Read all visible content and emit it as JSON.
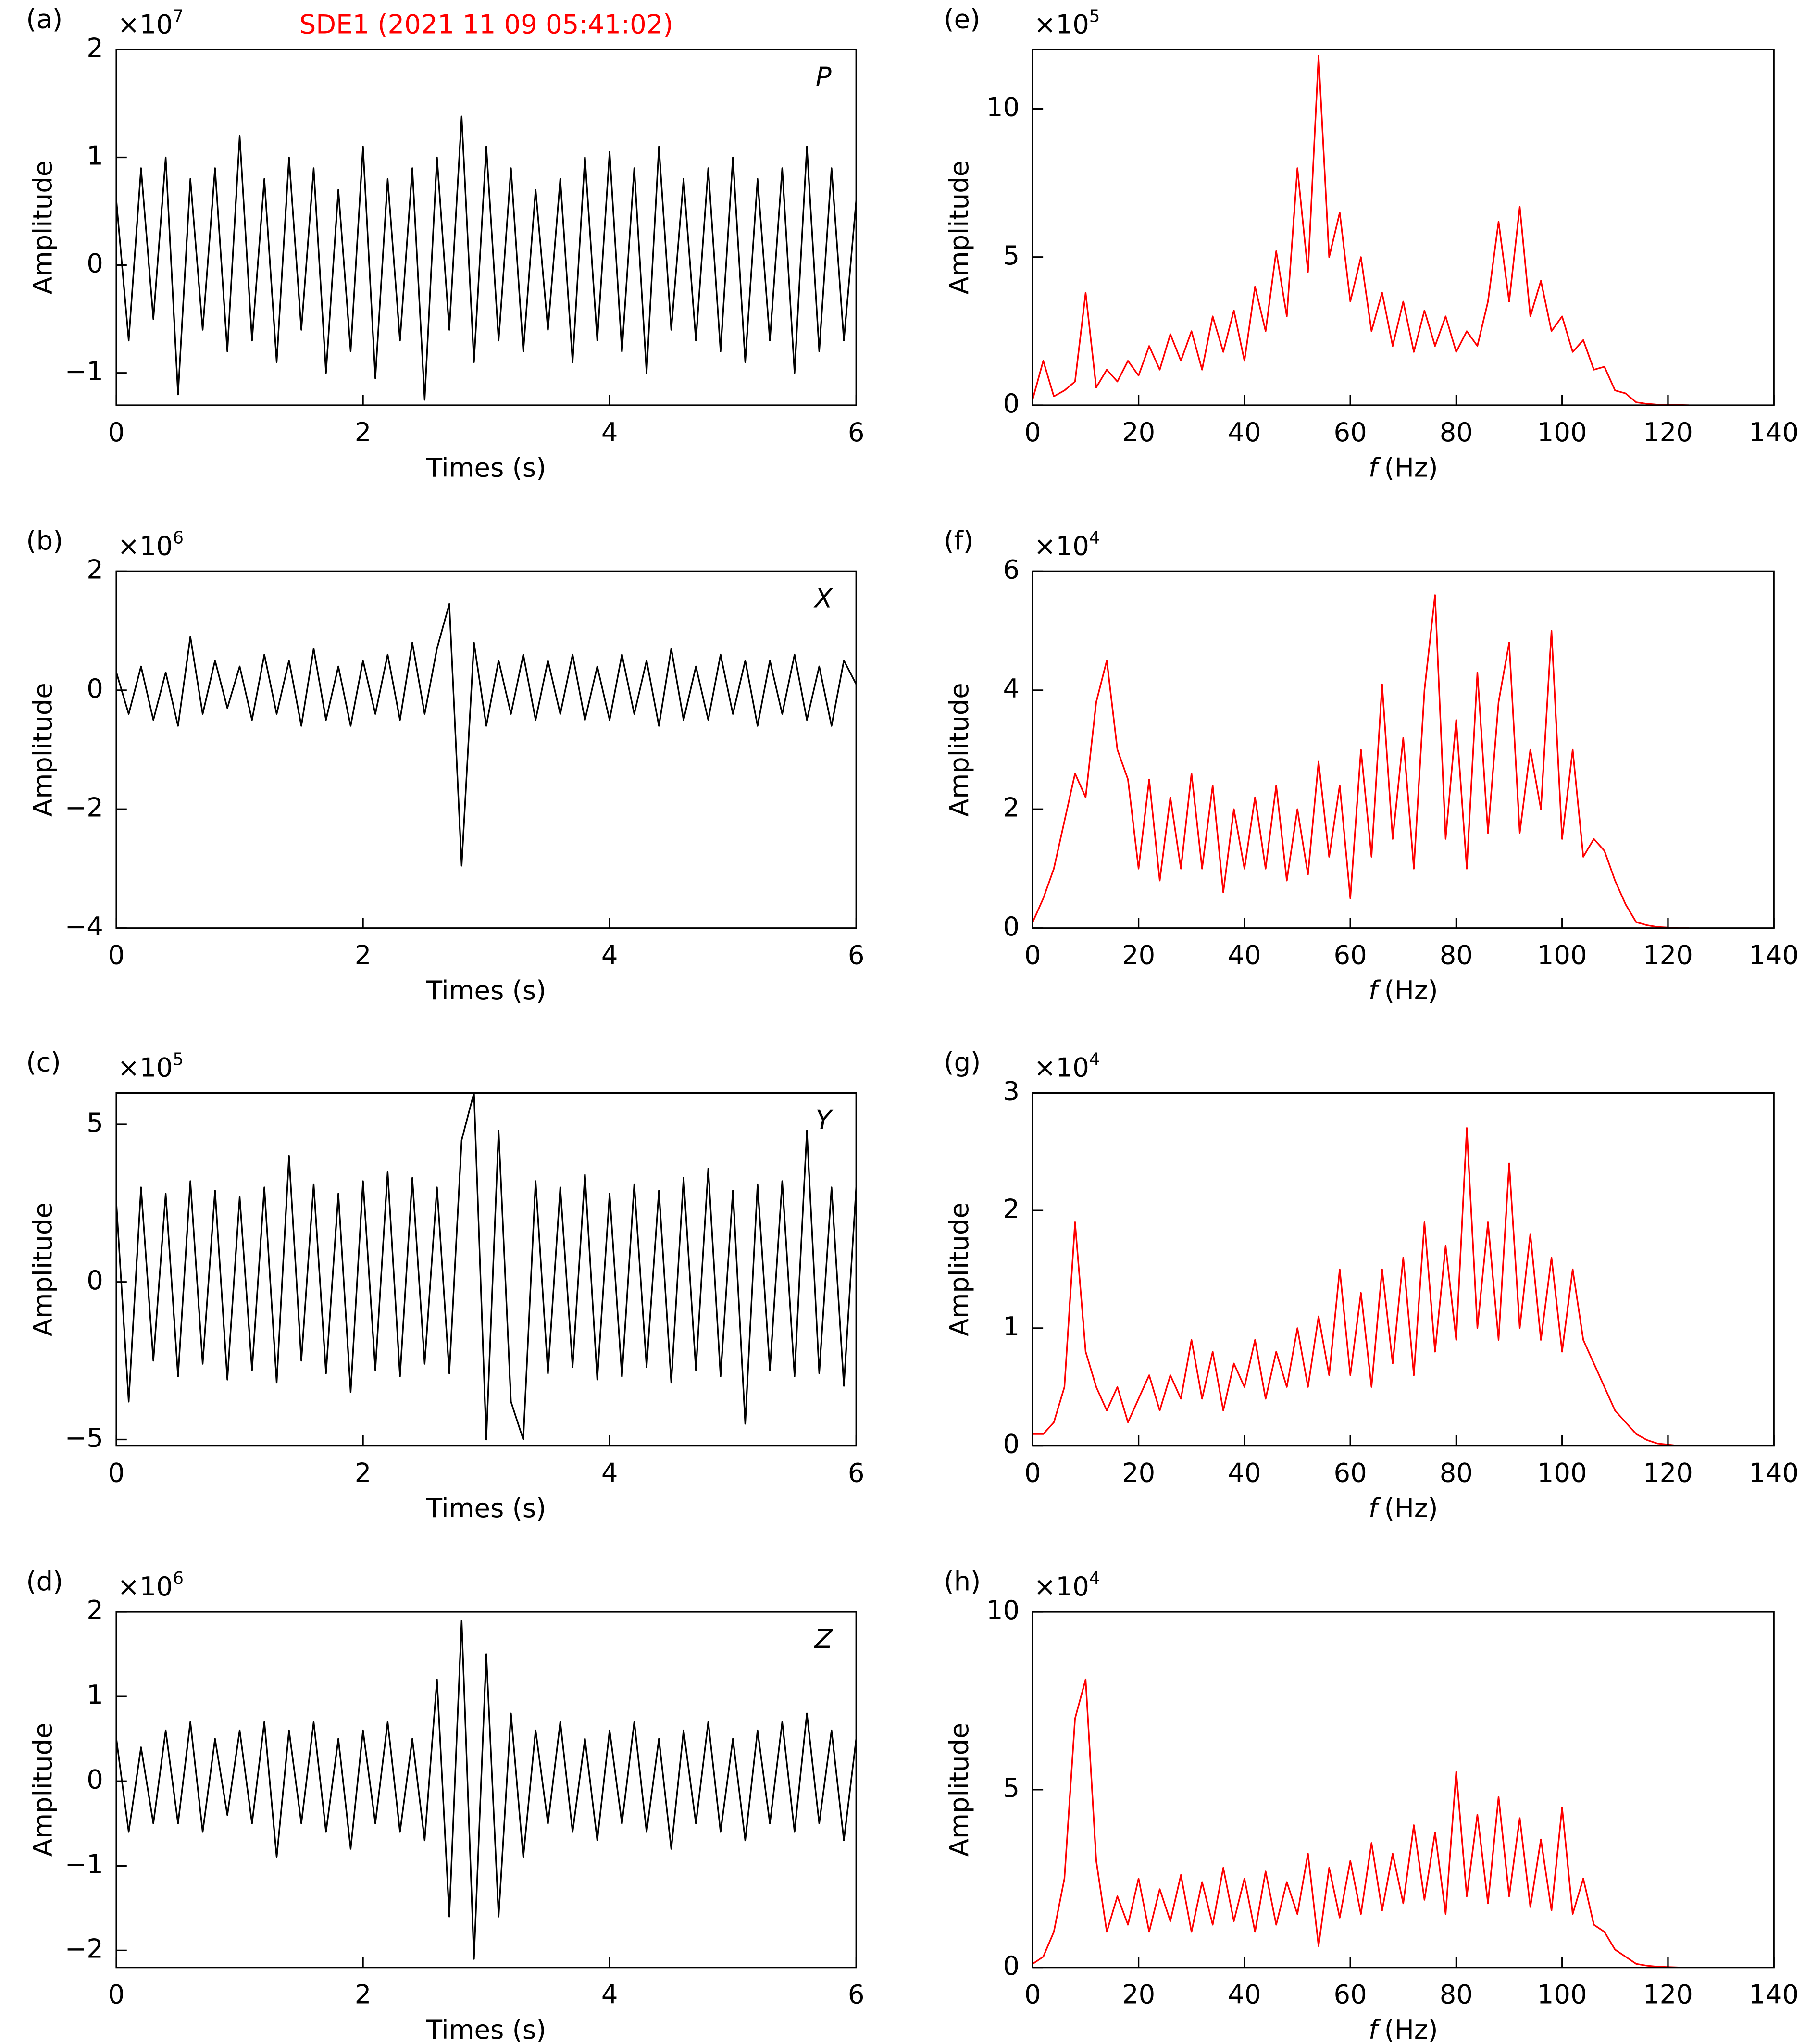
{
  "chart_data": [
    {
      "type": "line",
      "panel": "(a)",
      "title": "SDE1 (2021 11 09 05:41:02)",
      "title_color": "#ff0000",
      "multiplier": "×10",
      "exponent": "7",
      "annotation": "P",
      "xlabel": "Times (s)",
      "ylabel": "Amplitude",
      "xlim": [
        0,
        6
      ],
      "xticks": [
        0,
        2,
        4,
        6
      ],
      "ylim": [
        -1.3,
        2
      ],
      "yticks": [
        {
          "value": -1,
          "label": "−1"
        },
        0,
        1,
        2
      ],
      "x": [
        0,
        0.1,
        0.2,
        0.3,
        0.4,
        0.5,
        0.6,
        0.7,
        0.8,
        0.9,
        1,
        1.1,
        1.2,
        1.3,
        1.4,
        1.5,
        1.6,
        1.7,
        1.8,
        1.9,
        2,
        2.1,
        2.2,
        2.3,
        2.4,
        2.5,
        2.6,
        2.7,
        2.8,
        2.9,
        3,
        3.1,
        3.2,
        3.3,
        3.4,
        3.5,
        3.6,
        3.7,
        3.8,
        3.9,
        4,
        4.1,
        4.2,
        4.3,
        4.4,
        4.5,
        4.6,
        4.7,
        4.8,
        4.9,
        5,
        5.1,
        5.2,
        5.3,
        5.4,
        5.5,
        5.6,
        5.7,
        5.8,
        5.9,
        6
      ],
      "series": [
        {
          "color": "#000000",
          "values": [
            0.6,
            -0.7,
            0.9,
            -0.5,
            1.0,
            -1.2,
            0.8,
            -0.6,
            0.9,
            -0.8,
            1.2,
            -0.7,
            0.8,
            -0.9,
            1.0,
            -0.6,
            0.9,
            -1.0,
            0.7,
            -0.8,
            1.1,
            -1.05,
            0.8,
            -0.7,
            0.9,
            -1.25,
            1.0,
            -0.6,
            1.38,
            -0.9,
            1.1,
            -0.7,
            0.9,
            -0.8,
            0.7,
            -0.6,
            0.8,
            -0.9,
            1.0,
            -0.7,
            1.05,
            -0.8,
            0.9,
            -1.0,
            1.1,
            -0.6,
            0.8,
            -0.7,
            0.9,
            -0.8,
            1.0,
            -0.9,
            0.8,
            -0.7,
            0.9,
            -1.0,
            1.1,
            -0.8,
            0.9,
            -0.7,
            0.6
          ]
        }
      ]
    },
    {
      "type": "line",
      "panel": "(b)",
      "multiplier": "×10",
      "exponent": "6",
      "annotation": "X",
      "xlabel": "Times (s)",
      "ylabel": "Amplitude",
      "xlim": [
        0,
        6
      ],
      "xticks": [
        0,
        2,
        4,
        6
      ],
      "ylim": [
        -4,
        2
      ],
      "yticks": [
        {
          "value": -4,
          "label": "−4"
        },
        {
          "value": -2,
          "label": "−2"
        },
        0,
        2
      ],
      "x": [
        0,
        0.1,
        0.2,
        0.3,
        0.4,
        0.5,
        0.6,
        0.7,
        0.8,
        0.9,
        1,
        1.1,
        1.2,
        1.3,
        1.4,
        1.5,
        1.6,
        1.7,
        1.8,
        1.9,
        2,
        2.1,
        2.2,
        2.3,
        2.4,
        2.5,
        2.6,
        2.7,
        2.8,
        2.9,
        3,
        3.1,
        3.2,
        3.3,
        3.4,
        3.5,
        3.6,
        3.7,
        3.8,
        3.9,
        4,
        4.1,
        4.2,
        4.3,
        4.4,
        4.5,
        4.6,
        4.7,
        4.8,
        4.9,
        5,
        5.1,
        5.2,
        5.3,
        5.4,
        5.5,
        5.6,
        5.7,
        5.8,
        5.9,
        6
      ],
      "series": [
        {
          "color": "#000000",
          "values": [
            0.3,
            -0.4,
            0.4,
            -0.5,
            0.3,
            -0.6,
            0.9,
            -0.4,
            0.5,
            -0.3,
            0.4,
            -0.5,
            0.6,
            -0.4,
            0.5,
            -0.6,
            0.7,
            -0.5,
            0.4,
            -0.6,
            0.5,
            -0.4,
            0.6,
            -0.5,
            0.8,
            -0.4,
            0.7,
            1.45,
            -2.95,
            0.8,
            -0.6,
            0.5,
            -0.4,
            0.6,
            -0.5,
            0.5,
            -0.4,
            0.6,
            -0.5,
            0.4,
            -0.5,
            0.6,
            -0.4,
            0.5,
            -0.6,
            0.7,
            -0.5,
            0.4,
            -0.5,
            0.6,
            -0.4,
            0.5,
            -0.6,
            0.5,
            -0.4,
            0.6,
            -0.5,
            0.4,
            -0.6,
            0.5,
            0.1
          ]
        }
      ]
    },
    {
      "type": "line",
      "panel": "(c)",
      "multiplier": "×10",
      "exponent": "5",
      "annotation": "Y",
      "xlabel": "Times (s)",
      "ylabel": "Amplitude",
      "xlim": [
        0,
        6
      ],
      "xticks": [
        0,
        2,
        4,
        6
      ],
      "ylim": [
        -5.2,
        6
      ],
      "yticks": [
        {
          "value": -5,
          "label": "−5"
        },
        0,
        5
      ],
      "x": [
        0,
        0.1,
        0.2,
        0.3,
        0.4,
        0.5,
        0.6,
        0.7,
        0.8,
        0.9,
        1,
        1.1,
        1.2,
        1.3,
        1.4,
        1.5,
        1.6,
        1.7,
        1.8,
        1.9,
        2,
        2.1,
        2.2,
        2.3,
        2.4,
        2.5,
        2.6,
        2.7,
        2.8,
        2.9,
        3,
        3.1,
        3.2,
        3.3,
        3.4,
        3.5,
        3.6,
        3.7,
        3.8,
        3.9,
        4,
        4.1,
        4.2,
        4.3,
        4.4,
        4.5,
        4.6,
        4.7,
        4.8,
        4.9,
        5,
        5.1,
        5.2,
        5.3,
        5.4,
        5.5,
        5.6,
        5.7,
        5.8,
        5.9,
        6
      ],
      "series": [
        {
          "color": "#000000",
          "values": [
            2.5,
            -3.8,
            3.0,
            -2.5,
            2.8,
            -3.0,
            3.2,
            -2.6,
            2.9,
            -3.1,
            2.7,
            -2.8,
            3.0,
            -3.2,
            4.0,
            -2.5,
            3.1,
            -2.9,
            2.8,
            -3.5,
            3.2,
            -2.8,
            3.5,
            -3.0,
            3.3,
            -2.6,
            3.0,
            -2.9,
            4.5,
            6.0,
            -5.0,
            4.8,
            -3.8,
            -5.0,
            3.2,
            -2.9,
            3.0,
            -2.7,
            3.4,
            -3.1,
            2.8,
            -3.0,
            3.1,
            -2.7,
            2.9,
            -3.2,
            3.3,
            -2.8,
            3.6,
            -3.0,
            2.9,
            -4.5,
            3.1,
            -2.8,
            3.2,
            -3.0,
            4.8,
            -2.9,
            3.0,
            -3.3,
            3.0
          ]
        }
      ]
    },
    {
      "type": "line",
      "panel": "(d)",
      "multiplier": "×10",
      "exponent": "6",
      "annotation": "Z",
      "xlabel": "Times (s)",
      "ylabel": "Amplitude",
      "xlim": [
        0,
        6
      ],
      "xticks": [
        0,
        2,
        4,
        6
      ],
      "ylim": [
        -2.2,
        2
      ],
      "yticks": [
        {
          "value": -2,
          "label": "−2"
        },
        {
          "value": -1,
          "label": "−1"
        },
        0,
        1,
        2
      ],
      "x": [
        0,
        0.1,
        0.2,
        0.3,
        0.4,
        0.5,
        0.6,
        0.7,
        0.8,
        0.9,
        1,
        1.1,
        1.2,
        1.3,
        1.4,
        1.5,
        1.6,
        1.7,
        1.8,
        1.9,
        2,
        2.1,
        2.2,
        2.3,
        2.4,
        2.5,
        2.6,
        2.7,
        2.8,
        2.9,
        3,
        3.1,
        3.2,
        3.3,
        3.4,
        3.5,
        3.6,
        3.7,
        3.8,
        3.9,
        4,
        4.1,
        4.2,
        4.3,
        4.4,
        4.5,
        4.6,
        4.7,
        4.8,
        4.9,
        5,
        5.1,
        5.2,
        5.3,
        5.4,
        5.5,
        5.6,
        5.7,
        5.8,
        5.9,
        6
      ],
      "series": [
        {
          "color": "#000000",
          "values": [
            0.5,
            -0.6,
            0.4,
            -0.5,
            0.6,
            -0.5,
            0.7,
            -0.6,
            0.5,
            -0.4,
            0.6,
            -0.5,
            0.7,
            -0.9,
            0.6,
            -0.5,
            0.7,
            -0.6,
            0.5,
            -0.8,
            0.6,
            -0.5,
            0.7,
            -0.6,
            0.5,
            -0.7,
            1.2,
            -1.6,
            1.9,
            -2.1,
            1.5,
            -1.6,
            0.8,
            -0.9,
            0.6,
            -0.5,
            0.7,
            -0.6,
            0.5,
            -0.7,
            0.6,
            -0.5,
            0.7,
            -0.6,
            0.5,
            -0.8,
            0.6,
            -0.5,
            0.7,
            -0.6,
            0.5,
            -0.7,
            0.6,
            -0.5,
            0.7,
            -0.6,
            0.8,
            -0.5,
            0.6,
            -0.7,
            0.5
          ]
        }
      ]
    },
    {
      "type": "line",
      "panel": "(e)",
      "multiplier": "×10",
      "exponent": "5",
      "xlabel": {
        "var": "f",
        "unit": "(Hz)"
      },
      "ylabel": "Amplitude",
      "xlim": [
        0,
        140
      ],
      "xticks": [
        0,
        20,
        40,
        60,
        80,
        100,
        120,
        140
      ],
      "ylim": [
        0,
        12
      ],
      "yticks": [
        0,
        5,
        10
      ],
      "x": [
        0,
        2,
        4,
        6,
        8,
        10,
        12,
        14,
        16,
        18,
        20,
        22,
        24,
        26,
        28,
        30,
        32,
        34,
        36,
        38,
        40,
        42,
        44,
        46,
        48,
        50,
        52,
        54,
        56,
        58,
        60,
        62,
        64,
        66,
        68,
        70,
        72,
        74,
        76,
        78,
        80,
        82,
        84,
        86,
        88,
        90,
        92,
        94,
        96,
        98,
        100,
        102,
        104,
        106,
        108,
        110,
        112,
        114,
        116,
        118,
        120,
        122,
        124
      ],
      "series": [
        {
          "color": "#ff0000",
          "values": [
            0.2,
            1.5,
            0.3,
            0.5,
            0.8,
            3.8,
            0.6,
            1.2,
            0.8,
            1.5,
            1.0,
            2.0,
            1.2,
            2.4,
            1.5,
            2.5,
            1.2,
            3.0,
            1.8,
            3.2,
            1.5,
            4.0,
            2.5,
            5.2,
            3.0,
            8.0,
            4.5,
            11.8,
            5.0,
            6.5,
            3.5,
            5.0,
            2.5,
            3.8,
            2.0,
            3.5,
            1.8,
            3.2,
            2.0,
            3.0,
            1.8,
            2.5,
            2.0,
            3.5,
            6.2,
            3.5,
            6.7,
            3.0,
            4.2,
            2.5,
            3.0,
            1.8,
            2.2,
            1.2,
            1.3,
            0.5,
            0.4,
            0.1,
            0.05,
            0.02,
            0.01,
            0.01,
            0
          ]
        }
      ]
    },
    {
      "type": "line",
      "panel": "(f)",
      "multiplier": "×10",
      "exponent": "4",
      "xlabel": {
        "var": "f",
        "unit": "(Hz)"
      },
      "ylabel": "Amplitude",
      "xlim": [
        0,
        140
      ],
      "xticks": [
        0,
        20,
        40,
        60,
        80,
        100,
        120,
        140
      ],
      "ylim": [
        0,
        6
      ],
      "yticks": [
        0,
        2,
        4,
        6
      ],
      "x": [
        0,
        2,
        4,
        6,
        8,
        10,
        12,
        14,
        16,
        18,
        20,
        22,
        24,
        26,
        28,
        30,
        32,
        34,
        36,
        38,
        40,
        42,
        44,
        46,
        48,
        50,
        52,
        54,
        56,
        58,
        60,
        62,
        64,
        66,
        68,
        70,
        72,
        74,
        76,
        78,
        80,
        82,
        84,
        86,
        88,
        90,
        92,
        94,
        96,
        98,
        100,
        102,
        104,
        106,
        108,
        110,
        112,
        114,
        116,
        118,
        120,
        122,
        124
      ],
      "series": [
        {
          "color": "#ff0000",
          "values": [
            0.1,
            0.5,
            1.0,
            1.8,
            2.6,
            2.2,
            3.8,
            4.5,
            3.0,
            2.5,
            1.0,
            2.5,
            0.8,
            2.2,
            1.0,
            2.6,
            1.0,
            2.4,
            0.6,
            2.0,
            1.0,
            2.2,
            1.0,
            2.4,
            0.8,
            2.0,
            0.9,
            2.8,
            1.2,
            2.4,
            0.5,
            3.0,
            1.2,
            4.1,
            1.5,
            3.2,
            1.0,
            4.0,
            5.6,
            1.5,
            3.5,
            1.0,
            4.3,
            1.6,
            3.8,
            4.8,
            1.6,
            3.0,
            2.0,
            5.0,
            1.5,
            3.0,
            1.2,
            1.5,
            1.3,
            0.8,
            0.4,
            0.1,
            0.05,
            0.02,
            0.01,
            0,
            0
          ]
        }
      ]
    },
    {
      "type": "line",
      "panel": "(g)",
      "multiplier": "×10",
      "exponent": "4",
      "xlabel": {
        "var": "f",
        "unit": "(Hz)"
      },
      "ylabel": "Amplitude",
      "xlim": [
        0,
        140
      ],
      "xticks": [
        0,
        20,
        40,
        60,
        80,
        100,
        120,
        140
      ],
      "ylim": [
        0,
        3
      ],
      "yticks": [
        0,
        1,
        2,
        3
      ],
      "x": [
        0,
        2,
        4,
        6,
        8,
        10,
        12,
        14,
        16,
        18,
        20,
        22,
        24,
        26,
        28,
        30,
        32,
        34,
        36,
        38,
        40,
        42,
        44,
        46,
        48,
        50,
        52,
        54,
        56,
        58,
        60,
        62,
        64,
        66,
        68,
        70,
        72,
        74,
        76,
        78,
        80,
        82,
        84,
        86,
        88,
        90,
        92,
        94,
        96,
        98,
        100,
        102,
        104,
        106,
        108,
        110,
        112,
        114,
        116,
        118,
        120,
        122,
        124
      ],
      "series": [
        {
          "color": "#ff0000",
          "values": [
            0.1,
            0.1,
            0.2,
            0.5,
            1.9,
            0.8,
            0.5,
            0.3,
            0.5,
            0.2,
            0.4,
            0.6,
            0.3,
            0.6,
            0.4,
            0.9,
            0.4,
            0.8,
            0.3,
            0.7,
            0.5,
            0.9,
            0.4,
            0.8,
            0.5,
            1.0,
            0.5,
            1.1,
            0.6,
            1.5,
            0.6,
            1.3,
            0.5,
            1.5,
            0.7,
            1.6,
            0.6,
            1.9,
            0.8,
            1.7,
            0.9,
            2.7,
            1.0,
            1.9,
            0.9,
            2.4,
            1.0,
            1.8,
            0.9,
            1.6,
            0.8,
            1.5,
            0.9,
            0.7,
            0.5,
            0.3,
            0.2,
            0.1,
            0.05,
            0.02,
            0.01,
            0,
            0
          ]
        }
      ]
    },
    {
      "type": "line",
      "panel": "(h)",
      "multiplier": "×10",
      "exponent": "4",
      "xlabel": {
        "var": "f",
        "unit": "(Hz)"
      },
      "ylabel": "Amplitude",
      "xlim": [
        0,
        140
      ],
      "xticks": [
        0,
        20,
        40,
        60,
        80,
        100,
        120,
        140
      ],
      "ylim": [
        0,
        10
      ],
      "yticks": [
        0,
        5,
        10
      ],
      "x": [
        0,
        2,
        4,
        6,
        8,
        10,
        12,
        14,
        16,
        18,
        20,
        22,
        24,
        26,
        28,
        30,
        32,
        34,
        36,
        38,
        40,
        42,
        44,
        46,
        48,
        50,
        52,
        54,
        56,
        58,
        60,
        62,
        64,
        66,
        68,
        70,
        72,
        74,
        76,
        78,
        80,
        82,
        84,
        86,
        88,
        90,
        92,
        94,
        96,
        98,
        100,
        102,
        104,
        106,
        108,
        110,
        112,
        114,
        116,
        118,
        120,
        122,
        124
      ],
      "series": [
        {
          "color": "#ff0000",
          "values": [
            0.1,
            0.3,
            1.0,
            2.5,
            7.0,
            8.1,
            3.0,
            1.0,
            2.0,
            1.2,
            2.5,
            1.0,
            2.2,
            1.3,
            2.6,
            1.0,
            2.4,
            1.2,
            2.8,
            1.3,
            2.5,
            1.0,
            2.7,
            1.2,
            2.4,
            1.5,
            3.2,
            0.6,
            2.8,
            1.4,
            3.0,
            1.5,
            3.5,
            1.6,
            3.2,
            1.8,
            4.0,
            1.9,
            3.8,
            1.5,
            5.5,
            2.0,
            4.3,
            1.8,
            4.8,
            2.0,
            4.2,
            1.7,
            3.6,
            1.6,
            4.5,
            1.5,
            2.5,
            1.2,
            1.0,
            0.5,
            0.3,
            0.1,
            0.05,
            0.02,
            0.01,
            0,
            0
          ]
        }
      ]
    }
  ]
}
